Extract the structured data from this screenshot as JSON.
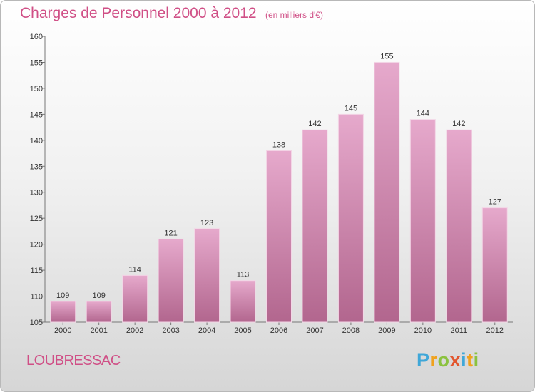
{
  "header": {
    "title": "Charges de Personnel 2000 à 2012",
    "subtitle": "(en milliers d'€)"
  },
  "footer": {
    "commune": "LOUBRESSAC",
    "logo": "Proxiti"
  },
  "colors": {
    "bar_top": "#e6a9cc",
    "bar_bottom": "#b2668e",
    "title": "#d04f86"
  },
  "chart_data": {
    "type": "bar",
    "title": "Charges de Personnel 2000 à 2012",
    "subtitle": "(en milliers d'€)",
    "categories": [
      "2000",
      "2001",
      "2002",
      "2003",
      "2004",
      "2005",
      "2006",
      "2007",
      "2008",
      "2009",
      "2010",
      "2011",
      "2012"
    ],
    "values": [
      109,
      109,
      114,
      121,
      123,
      113,
      138,
      142,
      145,
      155,
      144,
      142,
      127
    ],
    "ylim": [
      105,
      160
    ],
    "yticks": [
      105,
      110,
      115,
      120,
      125,
      130,
      135,
      140,
      145,
      150,
      155,
      160
    ],
    "grid": false,
    "data_labels": true
  }
}
